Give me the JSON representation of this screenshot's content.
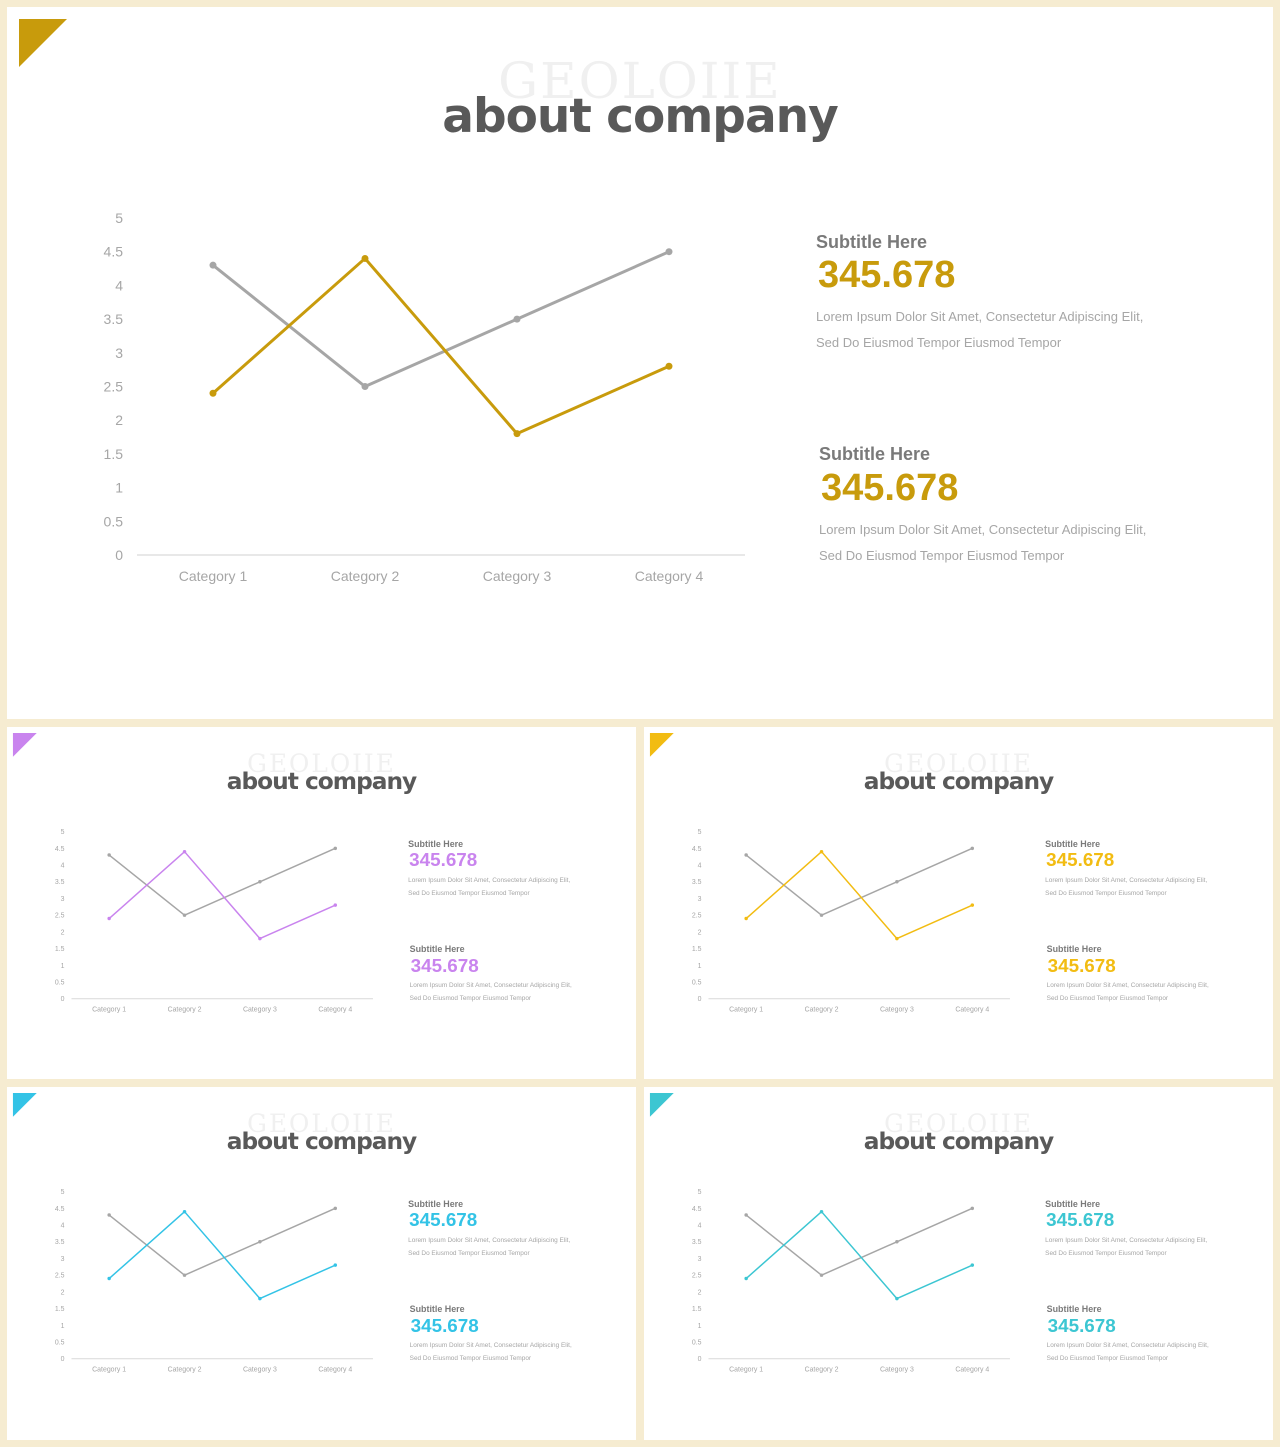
{
  "watermark": "GEOLOIIE",
  "slides": [
    {
      "title": "about company",
      "accent": "#c89b0c",
      "blocks": [
        {
          "subtitle": "Subtitle Here",
          "value": "345.678",
          "desc_line1": "Lorem Ipsum Dolor Sit Amet, Consectetur Adipiscing Elit,",
          "desc_line2": "Sed Do Eiusmod Tempor Eiusmod Tempor"
        },
        {
          "subtitle": "Subtitle Here",
          "value": "345.678",
          "desc_line1": "Lorem Ipsum Dolor Sit Amet, Consectetur Adipiscing Elit,",
          "desc_line2": "Sed Do Eiusmod Tempor Eiusmod Tempor"
        }
      ]
    },
    {
      "title": "about company",
      "accent": "#c984ee",
      "blocks": [
        {
          "subtitle": "Subtitle Here",
          "value": "345.678",
          "desc_line1": "Lorem Ipsum Dolor Sit Amet, Consectetur Adipiscing Elit,",
          "desc_line2": "Sed Do Eiusmod Tempor Eiusmod Tempor"
        },
        {
          "subtitle": "Subtitle Here",
          "value": "345.678",
          "desc_line1": "Lorem Ipsum Dolor Sit Amet, Consectetur Adipiscing Elit,",
          "desc_line2": "Sed Do Eiusmod Tempor Eiusmod Tempor"
        }
      ]
    },
    {
      "title": "about company",
      "accent": "#f2bc12",
      "blocks": [
        {
          "subtitle": "Subtitle Here",
          "value": "345.678",
          "desc_line1": "Lorem Ipsum Dolor Sit Amet, Consectetur Adipiscing Elit,",
          "desc_line2": "Sed Do Eiusmod Tempor Eiusmod Tempor"
        },
        {
          "subtitle": "Subtitle Here",
          "value": "345.678",
          "desc_line1": "Lorem Ipsum Dolor Sit Amet, Consectetur Adipiscing Elit,",
          "desc_line2": "Sed Do Eiusmod Tempor Eiusmod Tempor"
        }
      ]
    },
    {
      "title": "about company",
      "accent": "#33c3e6",
      "blocks": [
        {
          "subtitle": "Subtitle Here",
          "value": "345.678",
          "desc_line1": "Lorem Ipsum Dolor Sit Amet, Consectetur Adipiscing Elit,",
          "desc_line2": "Sed Do Eiusmod Tempor Eiusmod Tempor"
        },
        {
          "subtitle": "Subtitle Here",
          "value": "345.678",
          "desc_line1": "Lorem Ipsum Dolor Sit Amet, Consectetur Adipiscing Elit,",
          "desc_line2": "Sed Do Eiusmod Tempor Eiusmod Tempor"
        }
      ]
    },
    {
      "title": "about company",
      "accent": "#3cc6d2",
      "blocks": [
        {
          "subtitle": "Subtitle Here",
          "value": "345.678",
          "desc_line1": "Lorem Ipsum Dolor Sit Amet, Consectetur Adipiscing Elit,",
          "desc_line2": "Sed Do Eiusmod Tempor Eiusmod Tempor"
        },
        {
          "subtitle": "Subtitle Here",
          "value": "345.678",
          "desc_line1": "Lorem Ipsum Dolor Sit Amet, Consectetur Adipiscing Elit,",
          "desc_line2": "Sed Do Eiusmod Tempor Eiusmod Tempor"
        }
      ]
    }
  ],
  "chart_data": {
    "type": "line",
    "categories": [
      "Category 1",
      "Category 2",
      "Category 3",
      "Category 4"
    ],
    "series": [
      {
        "values": [
          4.3,
          2.5,
          3.5,
          4.5
        ],
        "color": "#a6a6a6"
      },
      {
        "values": [
          2.4,
          4.4,
          1.8,
          2.8
        ],
        "color": "accent"
      }
    ],
    "yticks": [
      "0",
      "0.5",
      "1",
      "1.5",
      "2",
      "2.5",
      "3",
      "3.5",
      "4",
      "4.5",
      "5"
    ],
    "ylim": [
      0,
      5
    ],
    "grid": false,
    "legend": "none",
    "title": "",
    "xlabel": "",
    "ylabel": ""
  }
}
